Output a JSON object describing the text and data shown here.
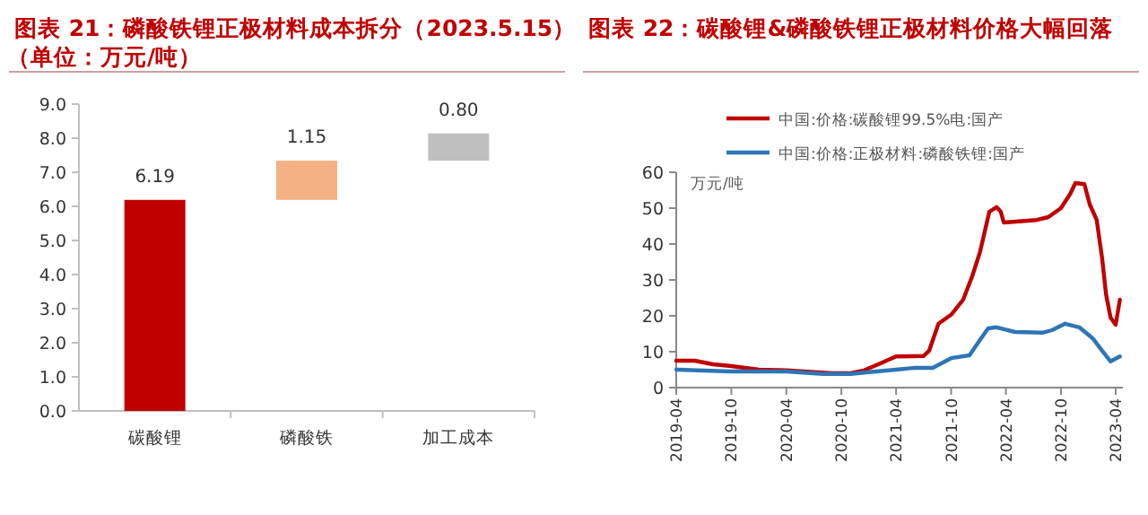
{
  "chart_data": [
    {
      "type": "bar",
      "title": "图表 21：磷酸铁锂正极材料成本拆分（2023.5.15）",
      "subtitle": "（单位：万元/吨）",
      "categories": [
        "碳酸锂",
        "磷酸铁",
        "加工成本"
      ],
      "values": [
        6.19,
        1.15,
        0.8
      ],
      "base": [
        0,
        6.19,
        7.34
      ],
      "colors": [
        "#c00000",
        "#f4b183",
        "#bfbfbf"
      ],
      "value_labels": [
        "6.19",
        "1.15",
        "0.80"
      ],
      "ylim": [
        0,
        9
      ],
      "yticks": [
        {
          "value": 0,
          "label": "0.0"
        },
        {
          "value": 1,
          "label": "1.0"
        },
        {
          "value": 2,
          "label": "2.0"
        },
        {
          "value": 3,
          "label": "3.0"
        },
        {
          "value": 4,
          "label": "4.0"
        },
        {
          "value": 5,
          "label": "5.0"
        },
        {
          "value": 6,
          "label": "6.0"
        },
        {
          "value": 7,
          "label": "7.0"
        },
        {
          "value": 8,
          "label": "8.0"
        },
        {
          "value": 9,
          "label": "9.0"
        }
      ]
    },
    {
      "type": "line",
      "title": "图表 22：碳酸锂&磷酸铁锂正极材料价格大幅回落",
      "ylabel": "万元/吨",
      "legend": "top",
      "series": [
        {
          "name": "中国:价格:碳酸锂99.5%电:国产",
          "color": "#c00000",
          "x": [
            "2019-04-01",
            "2019-06-01",
            "2019-08-01",
            "2019-10-01",
            "2020-01-01",
            "2020-04-01",
            "2020-07-01",
            "2020-09-01",
            "2020-11-01",
            "2020-12-15",
            "2021-02-01",
            "2021-04-01",
            "2021-07-01",
            "2021-07-20",
            "2021-08-20",
            "2021-10-01",
            "2021-11-10",
            "2021-12-10",
            "2022-01-05",
            "2022-02-05",
            "2022-03-01",
            "2022-03-15",
            "2022-03-25",
            "2022-07-12",
            "2022-08-20",
            "2022-10-01",
            "2022-11-01",
            "2022-11-18",
            "2022-12-18",
            "2023-01-05",
            "2023-01-28",
            "2023-02-15",
            "2023-02-28",
            "2023-03-15",
            "2023-04-01",
            "2023-04-15"
          ],
          "values": [
            7.5,
            7.5,
            6.5,
            6.0,
            5.0,
            4.8,
            4.3,
            4.0,
            4.0,
            4.8,
            6.5,
            8.7,
            8.8,
            10.3,
            17.8,
            20.3,
            24.5,
            31,
            37.8,
            49,
            50.3,
            49,
            46,
            46.7,
            47.5,
            50,
            54,
            57,
            56.7,
            51,
            46.7,
            36,
            26,
            19.5,
            17.5,
            24.5
          ]
        },
        {
          "name": "中国:价格:正极材料:磷酸铁锂:国产",
          "color": "#2e75b6",
          "x": [
            "2019-04-01",
            "2019-10-01",
            "2020-04-01",
            "2020-08-01",
            "2020-11-01",
            "2021-01-01",
            "2021-04-01",
            "2021-06-01",
            "2021-08-01",
            "2021-10-01",
            "2021-12-01",
            "2022-01-01",
            "2022-02-01",
            "2022-03-01",
            "2022-05-01",
            "2022-08-01",
            "2022-09-01",
            "2022-10-15",
            "2022-12-01",
            "2023-01-15",
            "2023-02-15",
            "2023-03-15",
            "2023-04-15"
          ],
          "values": [
            5.0,
            4.5,
            4.5,
            3.8,
            3.8,
            4.3,
            5.0,
            5.5,
            5.5,
            8.2,
            9.0,
            12.8,
            16.5,
            16.8,
            15.5,
            15.3,
            16.0,
            17.8,
            16.8,
            13.7,
            10.3,
            7.3,
            8.7
          ]
        }
      ],
      "xlim": [
        "2019-04-01",
        "2023-04-25"
      ],
      "xticks": [
        "2019-04",
        "2019-10",
        "2020-04",
        "2020-10",
        "2021-04",
        "2021-10",
        "2022-04",
        "2022-10",
        "2023-04"
      ],
      "ylim": [
        0,
        60
      ],
      "yticks": [
        0,
        10,
        20,
        30,
        40,
        50,
        60
      ]
    }
  ]
}
